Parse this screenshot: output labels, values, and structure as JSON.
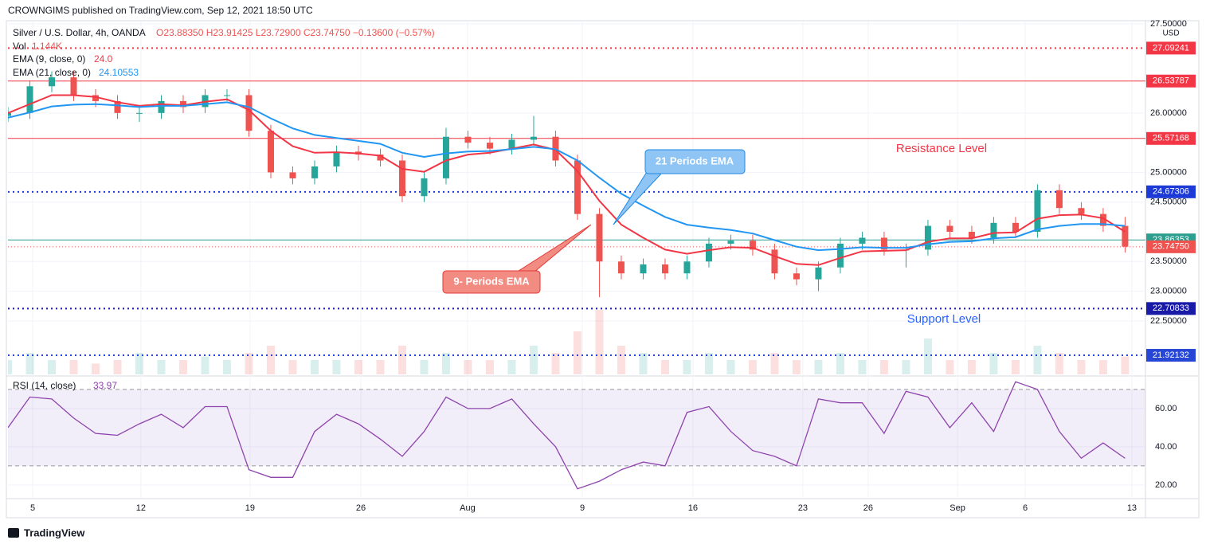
{
  "header": {
    "publisher": "CROWNGIMS published on TradingView.com, Sep 12, 2021 18:50 UTC",
    "symbol": "Silver / U.S. Dollar, 4h, OANDA",
    "ohlc": "O23.88350 H23.91425 L23.72900 C23.74750 −0.13600 (−0.57%)",
    "vol_label": "Vol",
    "vol_value": "1.144K",
    "ema9_value": "24.0",
    "ema21_value": "24.10553",
    "rsi_value": "33.97",
    "currency": "USD"
  },
  "footer": {
    "brand": "TradingView"
  },
  "chart_data": [
    {
      "type": "candlestick",
      "xlim": [
        0,
        51.93
      ],
      "xticks": [
        {
          "value": 1.13,
          "label": "5"
        },
        {
          "value": 6.07,
          "label": "12"
        },
        {
          "value": 11.05,
          "label": "19"
        },
        {
          "value": 16.11,
          "label": "26"
        },
        {
          "value": 20.98,
          "label": "Aug"
        },
        {
          "value": 26.22,
          "label": "9"
        },
        {
          "value": 31.27,
          "label": "16"
        },
        {
          "value": 36.29,
          "label": "23"
        },
        {
          "value": 39.27,
          "label": "26"
        },
        {
          "value": 43.35,
          "label": "Sep"
        },
        {
          "value": 46.44,
          "label": "6"
        },
        {
          "value": 51.31,
          "label": "13"
        }
      ],
      "ylim": [
        21.6,
        27.54
      ],
      "yticks": [
        {
          "value": 27.5,
          "label": "27.50000"
        },
        {
          "value": 26,
          "label": "26.00000"
        },
        {
          "value": 25,
          "label": "25.00000"
        },
        {
          "value": 24.5,
          "label": "24.50000"
        },
        {
          "value": 23.5,
          "label": "23.50000"
        },
        {
          "value": 23,
          "label": "23.00000"
        },
        {
          "value": 22.5,
          "label": "22.50000"
        }
      ],
      "grid": true,
      "up_color": "#26a69a",
      "down_color": "#ef5350",
      "open": [
        25.95,
        26.0,
        26.45,
        26.6,
        26.3,
        26.2,
        26.0,
        26.0,
        26.2,
        26.1,
        26.3,
        26.3,
        25.7,
        25.0,
        24.9,
        25.1,
        25.35,
        25.3,
        25.2,
        24.6,
        24.9,
        25.6,
        25.5,
        25.4,
        25.55,
        25.6,
        25.2,
        24.3,
        23.5,
        23.3,
        23.45,
        23.3,
        23.5,
        23.8,
        23.85,
        23.7,
        23.3,
        23.2,
        23.4,
        23.8,
        23.9,
        23.7,
        23.7,
        24.1,
        24.0,
        23.9,
        24.15,
        24.0,
        24.7,
        24.4,
        24.3,
        24.1
      ],
      "high": [
        26.1,
        26.55,
        26.7,
        26.7,
        26.4,
        26.3,
        26.1,
        26.3,
        26.3,
        26.4,
        26.4,
        26.4,
        25.8,
        25.1,
        25.2,
        25.45,
        25.45,
        25.4,
        25.3,
        25.0,
        25.75,
        25.7,
        25.6,
        25.65,
        25.95,
        25.7,
        25.3,
        24.4,
        23.6,
        23.55,
        23.55,
        23.6,
        23.9,
        23.95,
        23.95,
        23.8,
        23.4,
        23.5,
        23.9,
        24.0,
        24.0,
        23.8,
        24.2,
        24.2,
        24.1,
        24.25,
        24.25,
        24.8,
        24.8,
        24.5,
        24.4,
        24.25
      ],
      "low": [
        25.85,
        25.9,
        26.35,
        26.2,
        26.1,
        25.9,
        25.85,
        25.9,
        26.0,
        26.0,
        26.2,
        25.6,
        24.9,
        24.8,
        24.8,
        25.0,
        25.2,
        25.1,
        24.5,
        24.5,
        24.8,
        25.4,
        25.3,
        25.3,
        25.45,
        25.1,
        24.2,
        22.9,
        23.2,
        23.2,
        23.2,
        23.2,
        23.4,
        23.7,
        23.6,
        23.2,
        23.1,
        23.0,
        23.3,
        23.7,
        23.6,
        23.4,
        23.6,
        23.9,
        23.8,
        23.8,
        23.9,
        23.9,
        24.3,
        24.2,
        24.0,
        23.65
      ],
      "close": [
        26.0,
        26.45,
        26.6,
        26.3,
        26.2,
        26.0,
        26.0,
        26.2,
        26.1,
        26.3,
        26.3,
        25.7,
        25.0,
        24.9,
        25.1,
        25.35,
        25.3,
        25.2,
        24.6,
        24.9,
        25.6,
        25.5,
        25.4,
        25.55,
        25.6,
        25.2,
        24.3,
        23.5,
        23.3,
        23.45,
        23.3,
        23.5,
        23.8,
        23.85,
        23.7,
        23.3,
        23.2,
        23.4,
        23.8,
        23.9,
        23.7,
        23.7,
        24.1,
        24.0,
        23.9,
        24.15,
        24.0,
        24.7,
        24.4,
        24.3,
        24.1,
        23.75
      ],
      "volume": [
        2,
        3,
        2,
        2,
        1.5,
        2,
        3,
        2,
        2,
        2.5,
        2,
        3,
        4,
        2,
        2,
        2,
        2,
        2,
        4,
        2,
        3,
        2,
        2,
        2,
        4,
        3,
        6,
        9,
        4,
        3,
        2,
        2,
        3,
        2,
        2,
        3,
        2,
        2,
        3,
        2,
        2,
        2,
        5,
        2,
        2,
        3,
        2,
        4,
        3,
        2,
        2,
        2.5
      ],
      "volume_lim": [
        0,
        10
      ],
      "series": [
        {
          "name": "EMA (9, close, 0)",
          "color": "#f23645",
          "values": [
            26.0,
            26.15,
            26.3,
            26.3,
            26.27,
            26.18,
            26.12,
            26.15,
            26.13,
            26.19,
            26.23,
            26.05,
            25.7,
            25.44,
            25.33,
            25.34,
            25.32,
            25.28,
            25.06,
            25.01,
            25.2,
            25.3,
            25.33,
            25.4,
            25.47,
            25.38,
            25.02,
            24.52,
            24.12,
            23.9,
            23.7,
            23.63,
            23.69,
            23.74,
            23.73,
            23.59,
            23.46,
            23.44,
            23.56,
            23.67,
            23.68,
            23.69,
            23.83,
            23.89,
            23.89,
            23.98,
            23.99,
            24.22,
            24.28,
            24.29,
            24.23,
            24.0
          ]
        },
        {
          "name": "EMA (21, close, 0)",
          "color": "#2196f3",
          "values": [
            25.92,
            26.01,
            26.11,
            26.14,
            26.15,
            26.13,
            26.1,
            26.12,
            26.12,
            26.15,
            26.18,
            26.1,
            25.91,
            25.74,
            25.63,
            25.58,
            25.53,
            25.48,
            25.33,
            25.26,
            25.32,
            25.35,
            25.36,
            25.39,
            25.43,
            25.39,
            25.2,
            24.91,
            24.64,
            24.44,
            24.25,
            24.12,
            24.07,
            24.03,
            23.97,
            23.86,
            23.75,
            23.69,
            23.71,
            23.74,
            23.73,
            23.73,
            23.79,
            23.83,
            23.84,
            23.89,
            23.91,
            24.04,
            24.1,
            24.13,
            24.13,
            24.1
          ]
        }
      ],
      "levels": [
        {
          "value": 27.09241,
          "color": "#f23645",
          "style": "dotted"
        },
        {
          "value": 26.53787,
          "color": "#f23645",
          "style": "solid"
        },
        {
          "value": 25.57168,
          "color": "#f23645",
          "style": "solid"
        },
        {
          "value": 24.67306,
          "color": "#1e3ad6",
          "style": "dotted"
        },
        {
          "value": 23.86353,
          "color": "#2e9e8f",
          "style": "solid"
        },
        {
          "value": 23.7475,
          "label": "23.74750",
          "color": "#ef5350",
          "style": "fine"
        },
        {
          "value": 22.70833,
          "color": "#1a1aa8",
          "style": "dotted"
        },
        {
          "value": 21.92132,
          "color": "#2746d6",
          "style": "dotted"
        }
      ],
      "annotations": [
        {
          "text": "Resistance Level",
          "color": "#f23645"
        },
        {
          "text": "Support Level",
          "color": "#2962ff"
        },
        {
          "text": "21 Periods EMA",
          "color": "#8ec5f5"
        },
        {
          "text": "9- Periods EMA",
          "color": "#f28b82"
        }
      ]
    },
    {
      "type": "line",
      "name": "RSI (14, close)",
      "color": "#8e44ad",
      "xlim": [
        0,
        51.93
      ],
      "ylim": [
        13.3,
        75.8
      ],
      "yticks": [
        {
          "value": 60,
          "label": "60.00"
        },
        {
          "value": 40,
          "label": "40.00"
        },
        {
          "value": 20,
          "label": "20.00"
        }
      ],
      "bands": [
        30,
        70
      ],
      "values": [
        50,
        66,
        65,
        55,
        47,
        46,
        52,
        57,
        50,
        61,
        61,
        28,
        24,
        24,
        48,
        57,
        52,
        44,
        35,
        48,
        66,
        60,
        60,
        65,
        52,
        40,
        18,
        22,
        28,
        32,
        30,
        58,
        61,
        48,
        38,
        35,
        30,
        65,
        63,
        63,
        47,
        69,
        66,
        50,
        63,
        48,
        74,
        70,
        48,
        34,
        42,
        33.97
      ]
    }
  ]
}
